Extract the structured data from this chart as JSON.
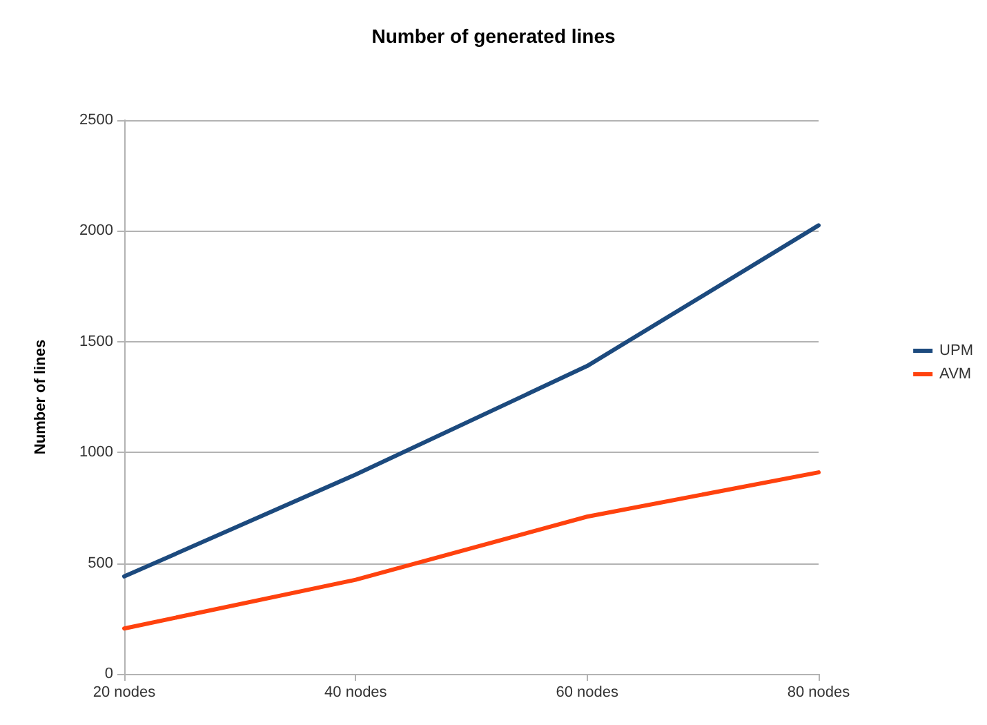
{
  "chart_data": {
    "type": "line",
    "title": "Number of generated lines",
    "ylabel": "Number of lines",
    "categories": [
      "20 nodes",
      "40 nodes",
      "60 nodes",
      "80 nodes"
    ],
    "series": [
      {
        "name": "UPM",
        "color": "#1c4a7e",
        "values": [
          440,
          900,
          1390,
          2025
        ]
      },
      {
        "name": "AVM",
        "color": "#ff420e",
        "values": [
          205,
          425,
          710,
          910
        ]
      }
    ],
    "ylim": [
      0,
      2500
    ],
    "yticks": [
      0,
      500,
      1000,
      1500,
      2000,
      2500
    ],
    "grid": "y",
    "legend": "right",
    "marker": "none",
    "line_style": "solid"
  }
}
